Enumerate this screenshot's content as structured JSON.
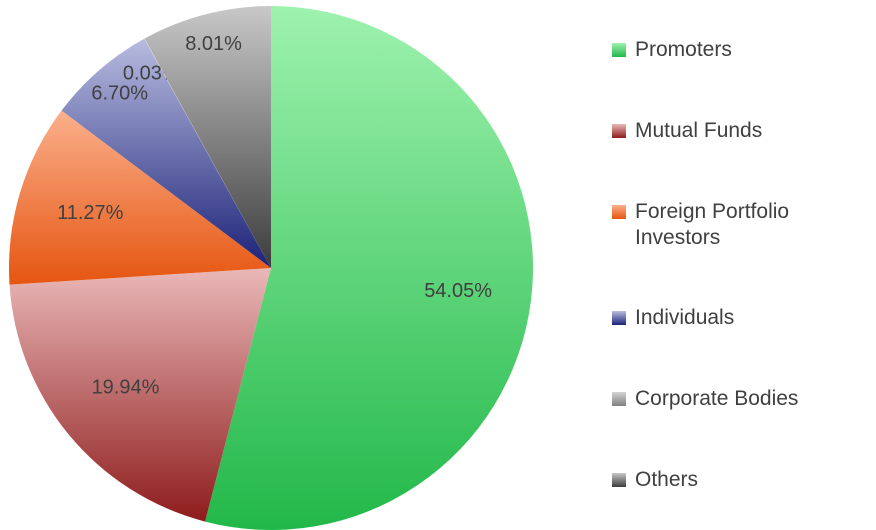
{
  "chart_data": {
    "type": "pie",
    "categories": [
      "Promoters",
      "Mutual Funds",
      "Foreign Portfolio Investors",
      "Individuals",
      "Corporate Bodies",
      "Others"
    ],
    "values": [
      54.05,
      19.94,
      11.27,
      6.7,
      0.03,
      8.01
    ],
    "value_labels": [
      "54.05%",
      "19.94%",
      "11.27%",
      "6.70%",
      "0.03%",
      "8.01%"
    ],
    "colors": [
      [
        "#9ef2ae",
        "#22b849"
      ],
      [
        "#eab8b8",
        "#8e1c1c"
      ],
      [
        "#fab08c",
        "#e65510"
      ],
      [
        "#b8bce0",
        "#1c2278"
      ],
      [
        "#d4d4d4",
        "#808080"
      ],
      [
        "#c8c8c8",
        "#3c3c3c"
      ]
    ],
    "legend": "right"
  }
}
